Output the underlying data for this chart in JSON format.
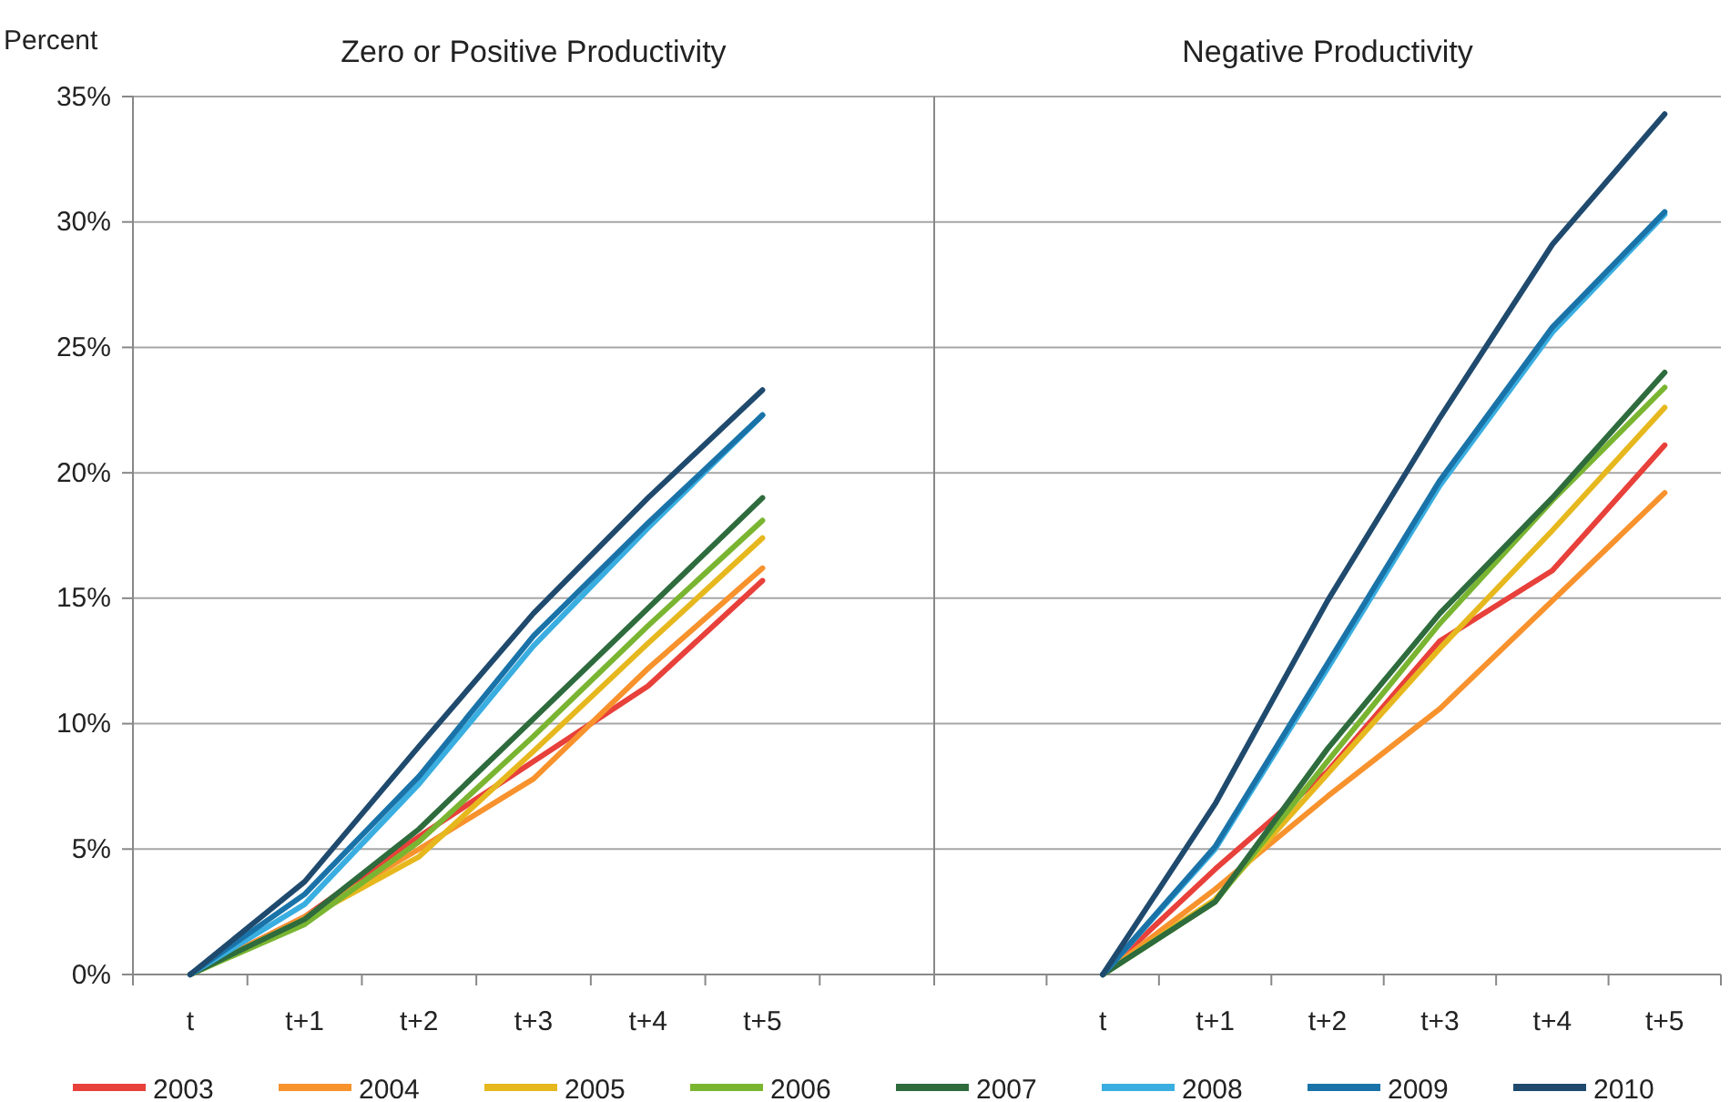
{
  "chart_data": [
    {
      "type": "line",
      "title": "Zero or Positive Productivity",
      "ylabel": "Percent",
      "categories": [
        "t",
        "t+1",
        "t+2",
        "t+3",
        "t+4",
        "t+5",
        null
      ],
      "ylim": [
        0,
        35
      ],
      "yticks": [
        {
          "value": 0,
          "label": "0%"
        },
        {
          "value": 5,
          "label": "5%"
        },
        {
          "value": 10,
          "label": "10%"
        },
        {
          "value": 15,
          "label": "15%"
        },
        {
          "value": 20,
          "label": "20%"
        },
        {
          "value": 25,
          "label": "25%"
        },
        {
          "value": 30,
          "label": "30%"
        },
        {
          "value": 35,
          "label": "35%"
        }
      ],
      "grid": "y",
      "legend": "bottom",
      "marker": "none",
      "line_style": "solid",
      "series": [
        {
          "name": "2003",
          "color": "#e8403a",
          "values": [
            0,
            2.3,
            5.5,
            8.5,
            11.5,
            15.7,
            null
          ]
        },
        {
          "name": "2004",
          "color": "#f7922d",
          "values": [
            0,
            2.3,
            5.0,
            7.8,
            12.2,
            16.2,
            null
          ]
        },
        {
          "name": "2005",
          "color": "#e6b81e",
          "values": [
            0,
            2.2,
            4.7,
            8.9,
            13.2,
            17.4,
            null
          ]
        },
        {
          "name": "2006",
          "color": "#7ab532",
          "values": [
            0,
            2.0,
            5.3,
            9.5,
            13.9,
            18.1,
            null
          ]
        },
        {
          "name": "2007",
          "color": "#2e6b3d",
          "values": [
            0,
            2.2,
            5.8,
            10.2,
            14.6,
            19.0,
            null
          ]
        },
        {
          "name": "2008",
          "color": "#3aaee0",
          "values": [
            0,
            2.8,
            7.6,
            13.1,
            17.8,
            22.3,
            null
          ]
        },
        {
          "name": "2009",
          "color": "#1a73a8",
          "values": [
            0,
            3.2,
            7.9,
            13.5,
            18.0,
            22.3,
            null
          ]
        },
        {
          "name": "2010",
          "color": "#1f4a6e",
          "values": [
            0,
            3.7,
            9.1,
            14.4,
            19.0,
            23.3,
            null
          ]
        }
      ]
    },
    {
      "type": "line",
      "title": "Negative Productivity",
      "categories": [
        null,
        "t",
        "t+1",
        "t+2",
        "t+3",
        "t+4",
        "t+5"
      ],
      "ylim": [
        0,
        35
      ],
      "yticks": [
        {
          "value": 0,
          "label": null
        },
        {
          "value": 5,
          "label": null
        },
        {
          "value": 10,
          "label": null
        },
        {
          "value": 15,
          "label": null
        },
        {
          "value": 20,
          "label": null
        },
        {
          "value": 25,
          "label": null
        },
        {
          "value": 30,
          "label": null
        },
        {
          "value": 35,
          "label": null
        }
      ],
      "tick_labels": "x",
      "grid": "y",
      "marker": "none",
      "line_style": "solid",
      "series": [
        {
          "color": "#e8403a",
          "values": [
            null,
            0,
            4.2,
            8.1,
            13.3,
            16.1,
            21.1
          ]
        },
        {
          "color": "#f7922d",
          "values": [
            null,
            0,
            3.4,
            7.1,
            10.6,
            14.9,
            19.2
          ]
        },
        {
          "color": "#e6b81e",
          "values": [
            null,
            0,
            3.0,
            8.0,
            13.0,
            17.7,
            22.6
          ]
        },
        {
          "color": "#7ab532",
          "values": [
            null,
            0,
            2.9,
            8.5,
            14.0,
            18.9,
            23.4
          ]
        },
        {
          "color": "#2e6b3d",
          "values": [
            null,
            0,
            2.9,
            9.0,
            14.4,
            19.0,
            24.0
          ]
        },
        {
          "color": "#3aaee0",
          "values": [
            null,
            0,
            5.0,
            12.2,
            19.5,
            25.6,
            30.3
          ]
        },
        {
          "color": "#1a73a8",
          "values": [
            null,
            0,
            5.1,
            12.4,
            19.7,
            25.8,
            30.4
          ]
        },
        {
          "color": "#1f4a6e",
          "values": [
            null,
            0,
            6.8,
            14.9,
            22.2,
            29.1,
            34.3
          ]
        }
      ]
    }
  ]
}
